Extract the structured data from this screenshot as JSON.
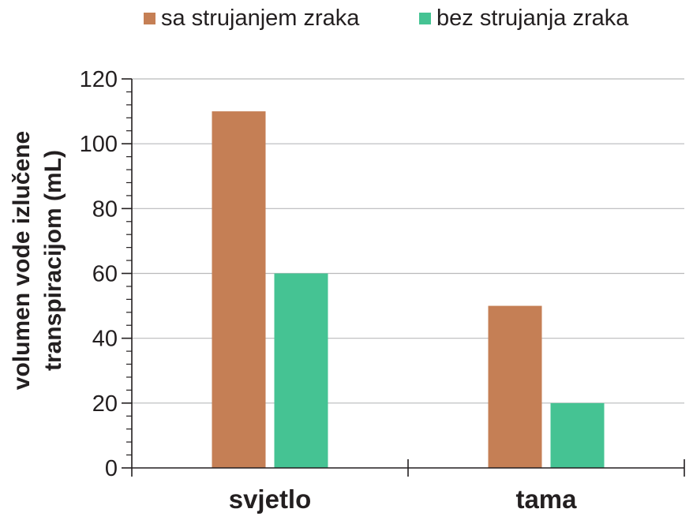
{
  "chart_data": {
    "type": "bar",
    "categories": [
      "svjetlo",
      "tama"
    ],
    "series": [
      {
        "name": "sa strujanjem zraka",
        "values": [
          110,
          50
        ],
        "color": "#c57f55"
      },
      {
        "name": "bez strujanja zraka",
        "values": [
          60,
          20
        ],
        "color": "#45c393"
      }
    ],
    "ylabel_lines": [
      "volumen vode izlučene",
      "transpiracijom (mL)"
    ],
    "xlabel": "",
    "ylim": [
      0,
      120
    ],
    "yticks": [
      0,
      20,
      40,
      60,
      80,
      100,
      120
    ],
    "grid": true,
    "legend_position": "top"
  }
}
